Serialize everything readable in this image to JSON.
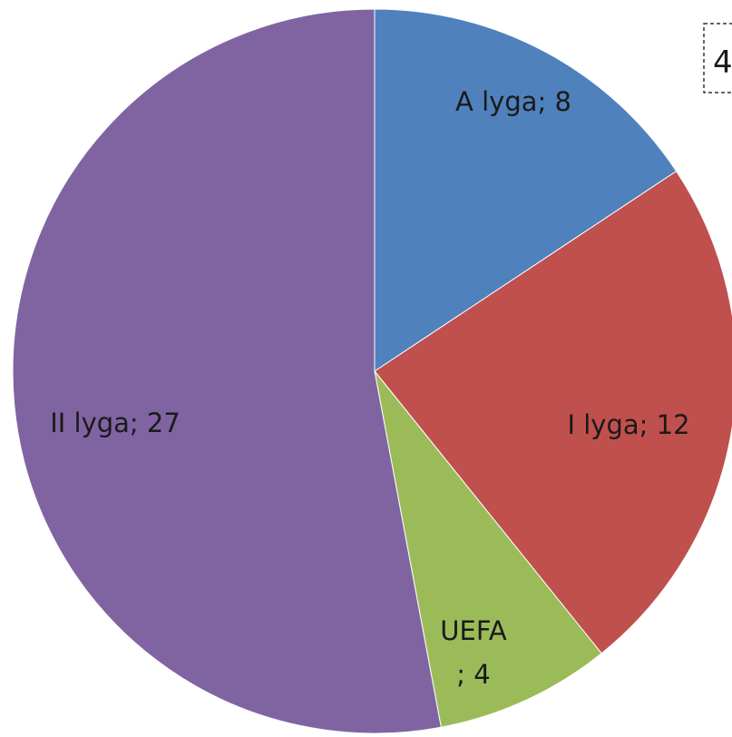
{
  "chart_data": {
    "type": "pie",
    "title_fragment": "4",
    "slices": [
      {
        "name": "A lyga",
        "value": 8,
        "color": "#4f81bd",
        "label": "A lyga; 8",
        "label_lines": [
          "A lyga; 8"
        ]
      },
      {
        "name": "I lyga",
        "value": 12,
        "color": "#c0504d",
        "label": "I lyga; 12",
        "label_lines": [
          "I lyga; 12"
        ]
      },
      {
        "name": "UEFA",
        "value": 4,
        "color": "#9bbb59",
        "label": "UEFA ; 4",
        "label_lines": [
          "UEFA",
          "; 4"
        ]
      },
      {
        "name": "II lyga",
        "value": 27,
        "color": "#8064a2",
        "label": "II lyga; 27",
        "label_lines": [
          "II lyga; 27"
        ]
      }
    ],
    "start": "top",
    "direction": "clockwise",
    "legend": "none"
  }
}
